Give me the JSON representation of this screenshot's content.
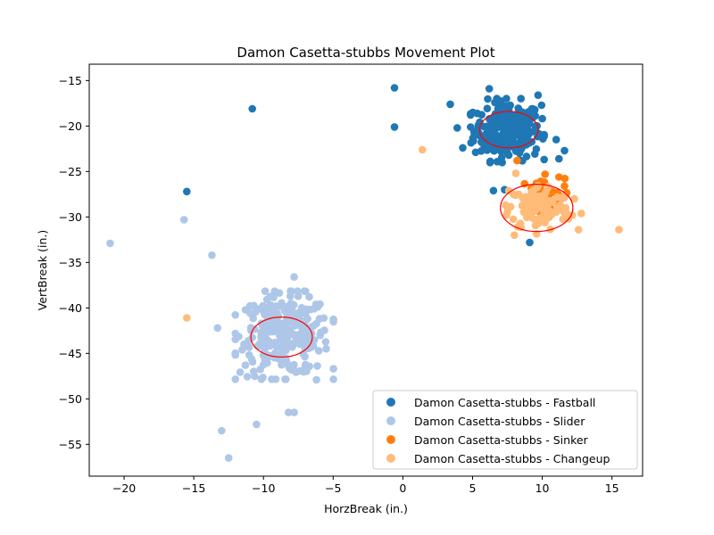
{
  "chart_data": {
    "type": "scatter",
    "title": "Damon Casetta-stubbs Movement Plot",
    "xlabel": "HorzBreak (in.)",
    "ylabel": "VertBreak (in.)",
    "xlim": [
      -22.5,
      17.2
    ],
    "ylim": [
      -58.5,
      -13.2
    ],
    "xticks": [
      -20,
      -15,
      -10,
      -5,
      0,
      5,
      10,
      15
    ],
    "yticks": [
      -55,
      -50,
      -45,
      -40,
      -35,
      -30,
      -25,
      -20,
      -15
    ],
    "grid": false,
    "legend_position": "lower-right",
    "series": [
      {
        "name": "Damon Casetta-stubbs - Fastball",
        "color": "#1f77b4",
        "cluster": {
          "cx": 7.5,
          "cy": -20.5,
          "sx": 1.2,
          "sy": 1.6,
          "n": 260
        },
        "points": [
          [
            -10.8,
            -18.1
          ],
          [
            -0.6,
            -15.8
          ],
          [
            -0.6,
            -20.1
          ],
          [
            -15.5,
            -27.2
          ],
          [
            3.4,
            -17.6
          ],
          [
            4.3,
            -22.4
          ],
          [
            6.5,
            -27.1
          ],
          [
            9.1,
            -32.8
          ],
          [
            9.7,
            -16.6
          ],
          [
            11.6,
            -22.7
          ],
          [
            11.2,
            -23.6
          ],
          [
            3.9,
            -20.2
          ],
          [
            6.2,
            -15.9
          ],
          [
            11.0,
            -21.5
          ],
          [
            7.3,
            -27.0
          ]
        ]
      },
      {
        "name": "Damon Casetta-stubbs - Slider",
        "color": "#aec7e8",
        "cluster": {
          "cx": -8.5,
          "cy": -43.0,
          "sx": 1.6,
          "sy": 2.2,
          "n": 280
        },
        "points": [
          [
            -21.0,
            -32.9
          ],
          [
            -15.7,
            -30.3
          ],
          [
            -13.7,
            -34.2
          ],
          [
            -13.3,
            -42.2
          ],
          [
            -12.5,
            -56.5
          ],
          [
            -13.0,
            -53.5
          ],
          [
            -10.5,
            -52.8
          ],
          [
            -7.8,
            -36.6
          ],
          [
            -8.2,
            -51.5
          ],
          [
            -7.8,
            -51.5
          ],
          [
            -6.2,
            -47.9
          ],
          [
            -5.5,
            -44.5
          ],
          [
            -11.3,
            -46.3
          ],
          [
            -11.4,
            -44.0
          ]
        ]
      },
      {
        "name": "Damon Casetta-stubbs - Sinker",
        "color": "#ff7f0e",
        "cluster": {
          "cx": 10.0,
          "cy": -27.8,
          "sx": 0.8,
          "sy": 1.0,
          "n": 45
        },
        "points": [
          [
            8.2,
            -23.8
          ],
          [
            11.2,
            -25.6
          ],
          [
            11.6,
            -26.6
          ],
          [
            10.2,
            -25.3
          ]
        ]
      },
      {
        "name": "Damon Casetta-stubbs - Changeup",
        "color": "#ffbb78",
        "cluster": {
          "cx": 9.8,
          "cy": -29.0,
          "sx": 1.1,
          "sy": 1.3,
          "n": 110
        },
        "points": [
          [
            1.4,
            -22.6
          ],
          [
            -15.5,
            -41.1
          ],
          [
            15.5,
            -31.4
          ],
          [
            12.6,
            -31.4
          ],
          [
            12.8,
            -29.6
          ],
          [
            8.0,
            -32.0
          ],
          [
            7.6,
            -27.1
          ],
          [
            8.1,
            -25.2
          ],
          [
            12.3,
            -28.0
          ]
        ]
      }
    ],
    "ellipses": [
      {
        "cx": 7.6,
        "cy": -20.4,
        "rx": 2.1,
        "ry": 2.0,
        "color": "#ff0000"
      },
      {
        "cx": 9.6,
        "cy": -29.0,
        "rx": 2.6,
        "ry": 2.6,
        "color": "#ff0000"
      },
      {
        "cx": -8.7,
        "cy": -43.2,
        "rx": 2.2,
        "ry": 2.2,
        "color": "#ff0000"
      }
    ]
  }
}
